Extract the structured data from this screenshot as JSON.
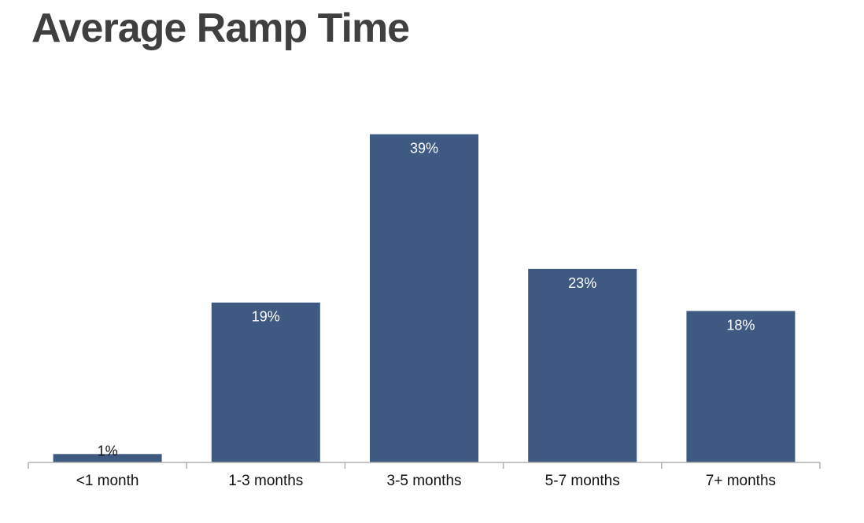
{
  "chart_data": {
    "type": "bar",
    "title": "Average Ramp Time",
    "categories": [
      "<1 month",
      "1-3 months",
      "3-5 months",
      "5-7 months",
      "7+ months"
    ],
    "values": [
      1,
      19,
      39,
      23,
      18
    ],
    "data_labels": [
      "1%",
      "19%",
      "39%",
      "23%",
      "18%"
    ],
    "ylim": [
      0,
      40
    ],
    "grid": false,
    "legend": "none",
    "bar_color": "#3f5a82",
    "label_color": "#ffffff",
    "small_label_color": "#111111",
    "axis_color": "#b0b0b0"
  }
}
